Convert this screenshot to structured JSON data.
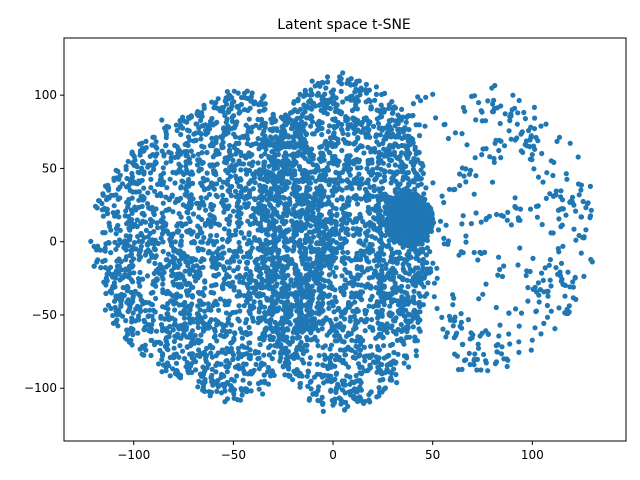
{
  "chart_data": {
    "type": "scatter",
    "title": "Latent space t-SNE",
    "xlabel": "",
    "ylabel": "",
    "xlim": [
      -135,
      147
    ],
    "ylim": [
      -136,
      139
    ],
    "xticks": [
      -100,
      -50,
      0,
      50,
      100
    ],
    "xtick_labels": [
      "−100",
      "−50",
      "0",
      "50",
      "100"
    ],
    "yticks": [
      -100,
      -50,
      0,
      50,
      100
    ],
    "ytick_labels": [
      "−100",
      "−50",
      "0",
      "50",
      "100"
    ],
    "grid": false,
    "legend": "none",
    "marker_color": "#1f77b4",
    "points_note": "dense cloud of t-SNE embedded points",
    "regions": [
      {
        "cx": -60,
        "cy": 0,
        "rx": 60,
        "ry": 110,
        "density": 2400
      },
      {
        "cx": 5,
        "cy": 0,
        "rx": 45,
        "ry": 115,
        "density": 2200
      },
      {
        "cx": 38,
        "cy": 15,
        "rx": 12,
        "ry": 18,
        "density": 900
      },
      {
        "cx": 70,
        "cy": 10,
        "rx": 60,
        "ry": 100,
        "density": 700
      }
    ]
  }
}
